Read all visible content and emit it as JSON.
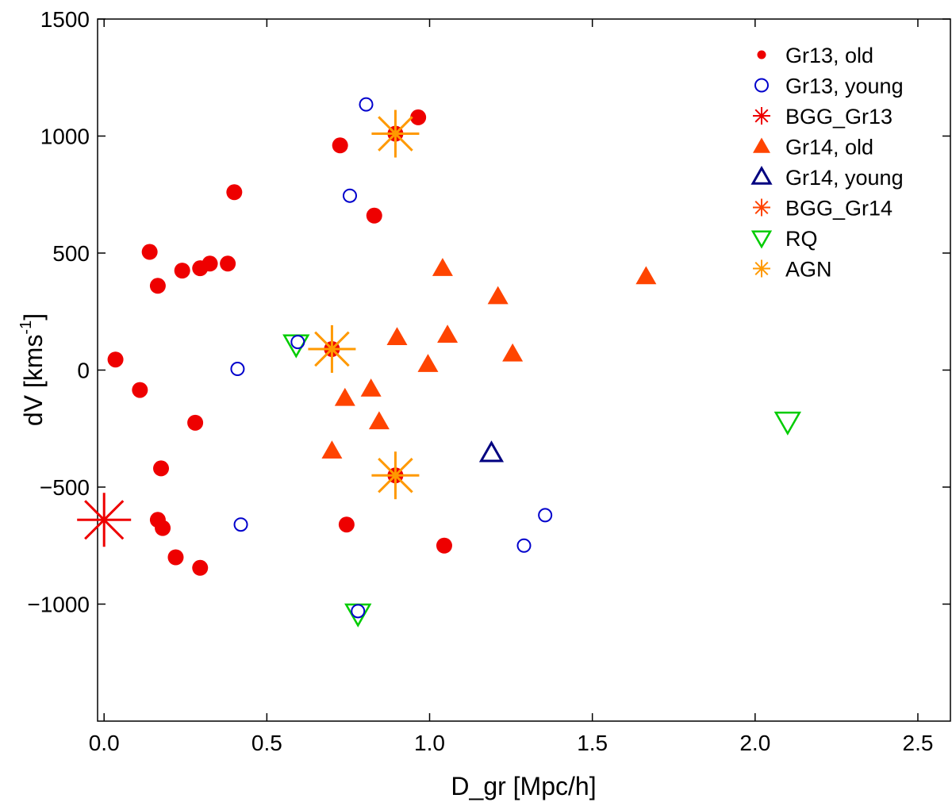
{
  "chart_data": {
    "type": "scatter",
    "xlabel": "D_gr [Mpc/h]",
    "ylabel_main": "dV [kms",
    "ylabel_sup": "-1",
    "ylabel_close": "]",
    "xlim": [
      -0.02,
      2.6
    ],
    "ylim": [
      -1500,
      1500
    ],
    "xticks": [
      0.0,
      0.5,
      1.0,
      1.5,
      2.0,
      2.5
    ],
    "xtick_labels": [
      "0.0",
      "0.5",
      "1.0",
      "1.5",
      "2.0",
      "2.5"
    ],
    "yticks": [
      -1000,
      -500,
      0,
      500,
      1000,
      1500
    ],
    "ytick_labels": [
      "−1000",
      "−500",
      "0",
      "500",
      "1000",
      "1500"
    ],
    "legend_position": "top-right",
    "colors": {
      "gr13_old": "#ee0000",
      "gr13_young": "#0000cc",
      "bgg_gr13": "#ee0000",
      "gr14_old": "#ff4400",
      "gr14_young": "#000080",
      "bgg_gr14": "#ff4400",
      "rq": "#00cc00",
      "agn": "#ff9900"
    },
    "legend": [
      {
        "key": "gr13_old",
        "label": "Gr13, old",
        "marker": "filled-circle"
      },
      {
        "key": "gr13_young",
        "label": "Gr13, young",
        "marker": "open-circle"
      },
      {
        "key": "bgg_gr13",
        "label": "BGG_Gr13",
        "marker": "asterisk"
      },
      {
        "key": "gr14_old",
        "label": "Gr14, old",
        "marker": "filled-triangle"
      },
      {
        "key": "gr14_young",
        "label": "Gr14, young",
        "marker": "open-triangle"
      },
      {
        "key": "bgg_gr14",
        "label": "BGG_Gr14",
        "marker": "asterisk"
      },
      {
        "key": "rq",
        "label": "RQ",
        "marker": "open-triangle-down"
      },
      {
        "key": "agn",
        "label": "AGN",
        "marker": "asterisk"
      }
    ],
    "series": [
      {
        "name": "Gr13, old",
        "key": "gr13_old",
        "points": [
          [
            0.035,
            45
          ],
          [
            0.11,
            -85
          ],
          [
            0.14,
            505
          ],
          [
            0.165,
            360
          ],
          [
            0.24,
            425
          ],
          [
            0.295,
            435
          ],
          [
            0.325,
            455
          ],
          [
            0.38,
            455
          ],
          [
            0.4,
            760
          ],
          [
            0.165,
            -640
          ],
          [
            0.175,
            -420
          ],
          [
            0.18,
            -675
          ],
          [
            0.22,
            -800
          ],
          [
            0.28,
            -225
          ],
          [
            0.295,
            -845
          ],
          [
            0.725,
            960
          ],
          [
            0.83,
            660
          ],
          [
            0.965,
            1080
          ],
          [
            0.745,
            -660
          ],
          [
            1.045,
            -750
          ],
          [
            0.7,
            90
          ],
          [
            0.895,
            1010
          ],
          [
            0.895,
            -450
          ]
        ]
      },
      {
        "name": "Gr13, young",
        "key": "gr13_young",
        "points": [
          [
            0.41,
            5
          ],
          [
            0.42,
            -660
          ],
          [
            0.595,
            120
          ],
          [
            0.755,
            745
          ],
          [
            0.805,
            1135
          ],
          [
            0.78,
            -1030
          ],
          [
            1.29,
            -750
          ],
          [
            1.355,
            -620
          ]
        ]
      },
      {
        "name": "BGG_Gr13",
        "key": "bgg_gr13",
        "points": [
          [
            0.0,
            -640
          ]
        ]
      },
      {
        "name": "Gr14, old",
        "key": "gr14_old",
        "points": [
          [
            0.7,
            -345
          ],
          [
            0.74,
            -120
          ],
          [
            0.82,
            -80
          ],
          [
            0.845,
            -220
          ],
          [
            0.9,
            140
          ],
          [
            0.995,
            25
          ],
          [
            1.04,
            435
          ],
          [
            1.055,
            150
          ],
          [
            1.21,
            315
          ],
          [
            1.255,
            70
          ],
          [
            1.665,
            400
          ]
        ]
      },
      {
        "name": "Gr14, young",
        "key": "gr14_young",
        "points": [
          [
            1.19,
            -355
          ]
        ]
      },
      {
        "name": "BGG_Gr14",
        "key": "bgg_gr14",
        "points": []
      },
      {
        "name": "RQ",
        "key": "rq",
        "points": [
          [
            0.59,
            110
          ],
          [
            0.78,
            -1040
          ],
          [
            2.1,
            -220
          ]
        ]
      },
      {
        "name": "AGN",
        "key": "agn",
        "points": [
          [
            0.7,
            90
          ],
          [
            0.895,
            1010
          ],
          [
            0.895,
            -450
          ]
        ]
      }
    ]
  }
}
